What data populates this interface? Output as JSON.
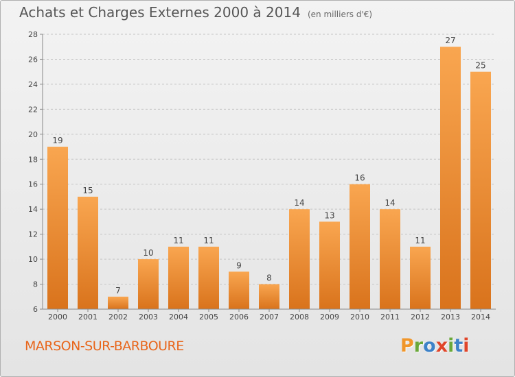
{
  "header": {
    "title": "Achats et Charges Externes 2000 à 2014",
    "unit_note": "(en milliers d'€)"
  },
  "footer": {
    "place_name": "MARSON-SUR-BARBOURE"
  },
  "logo": {
    "text": "Proxiti",
    "letter_colors": [
      "#f0962a",
      "#6aa83a",
      "#3d82c8",
      "#e0452a",
      "#6aa83a",
      "#3d82c8",
      "#e0452a"
    ]
  },
  "colors": {
    "bar_light": "#f9a650",
    "bar_dark": "#d9731c",
    "place_text": "#e8651a"
  },
  "chart_data": {
    "type": "bar",
    "title": "Achats et Charges Externes 2000 à 2014",
    "subtitle": "(en milliers d'€)",
    "categories": [
      "2000",
      "2001",
      "2002",
      "2003",
      "2004",
      "2005",
      "2006",
      "2007",
      "2008",
      "2009",
      "2010",
      "2011",
      "2012",
      "2013",
      "2014"
    ],
    "values": [
      19,
      15,
      7,
      10,
      11,
      11,
      9,
      8,
      14,
      13,
      16,
      14,
      11,
      27,
      25
    ],
    "data_labels": [
      "19",
      "15",
      "7",
      "10",
      "11",
      "11",
      "9",
      "8",
      "14",
      "13",
      "16",
      "14",
      "11",
      "27",
      "25"
    ],
    "y_ticks": [
      6,
      8,
      10,
      12,
      14,
      16,
      18,
      20,
      22,
      24,
      26,
      28
    ],
    "ylim": [
      6,
      28
    ],
    "grid": "horizontal dashed",
    "legend": "none"
  }
}
